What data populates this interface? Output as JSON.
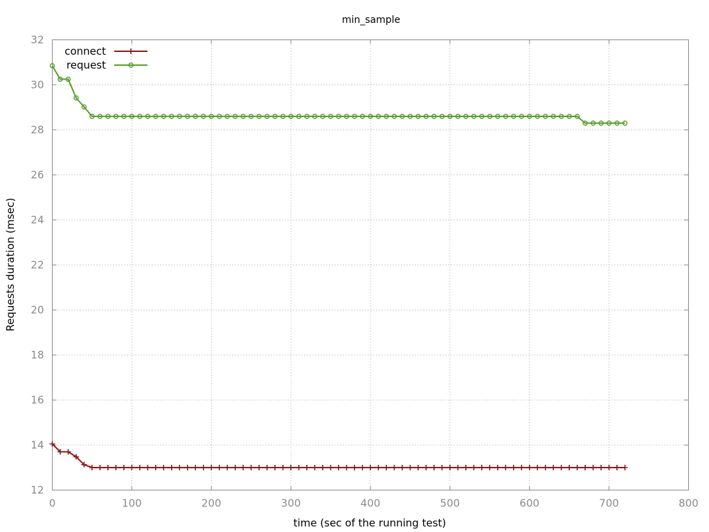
{
  "chart_data": {
    "type": "line",
    "title": "min_sample",
    "xlabel": "time (sec of the running test)",
    "ylabel": "Requests duration (msec)",
    "xlim": [
      0,
      800
    ],
    "ylim": [
      12,
      32
    ],
    "xticks": [
      0,
      100,
      200,
      300,
      400,
      500,
      600,
      700,
      800
    ],
    "yticks": [
      12,
      14,
      16,
      18,
      20,
      22,
      24,
      26,
      28,
      30,
      32
    ],
    "grid": true,
    "legend_position": "top-left",
    "x": [
      0,
      10,
      20,
      30,
      40,
      50,
      60,
      70,
      80,
      90,
      100,
      110,
      120,
      130,
      140,
      150,
      160,
      170,
      180,
      190,
      200,
      210,
      220,
      230,
      240,
      250,
      260,
      270,
      280,
      290,
      300,
      310,
      320,
      330,
      340,
      350,
      360,
      370,
      380,
      390,
      400,
      410,
      420,
      430,
      440,
      450,
      460,
      470,
      480,
      490,
      500,
      510,
      520,
      530,
      540,
      550,
      560,
      570,
      580,
      590,
      600,
      610,
      620,
      630,
      640,
      650,
      660,
      670,
      680,
      690,
      700,
      710,
      720
    ],
    "series": [
      {
        "name": "connect",
        "color": "#8b1a1a",
        "marker": "plus",
        "values": [
          14.05,
          13.7,
          13.7,
          13.48,
          13.13,
          13,
          13,
          13,
          13,
          13,
          13,
          13,
          13,
          13,
          13,
          13,
          13,
          13,
          13,
          13,
          13,
          13,
          13,
          13,
          13,
          13,
          13,
          13,
          13,
          13,
          13,
          13,
          13,
          13,
          13,
          13,
          13,
          13,
          13,
          13,
          13,
          13,
          13,
          13,
          13,
          13,
          13,
          13,
          13,
          13,
          13,
          13,
          13,
          13,
          13,
          13,
          13,
          13,
          13,
          13,
          13,
          13,
          13,
          13,
          13,
          13,
          13,
          13,
          13,
          13,
          13,
          13,
          13
        ]
      },
      {
        "name": "request",
        "color": "#5a9e2f",
        "marker": "circle",
        "values": [
          30.85,
          30.25,
          30.25,
          29.42,
          29.02,
          28.6,
          28.6,
          28.6,
          28.6,
          28.6,
          28.6,
          28.6,
          28.6,
          28.6,
          28.6,
          28.6,
          28.6,
          28.6,
          28.6,
          28.6,
          28.6,
          28.6,
          28.6,
          28.6,
          28.6,
          28.6,
          28.6,
          28.6,
          28.6,
          28.6,
          28.6,
          28.6,
          28.6,
          28.6,
          28.6,
          28.6,
          28.6,
          28.6,
          28.6,
          28.6,
          28.6,
          28.6,
          28.6,
          28.6,
          28.6,
          28.6,
          28.6,
          28.6,
          28.6,
          28.6,
          28.6,
          28.6,
          28.6,
          28.6,
          28.6,
          28.6,
          28.6,
          28.6,
          28.6,
          28.6,
          28.6,
          28.6,
          28.6,
          28.6,
          28.6,
          28.6,
          28.6,
          28.3,
          28.3,
          28.3,
          28.3,
          28.3,
          28.3
        ]
      }
    ]
  }
}
